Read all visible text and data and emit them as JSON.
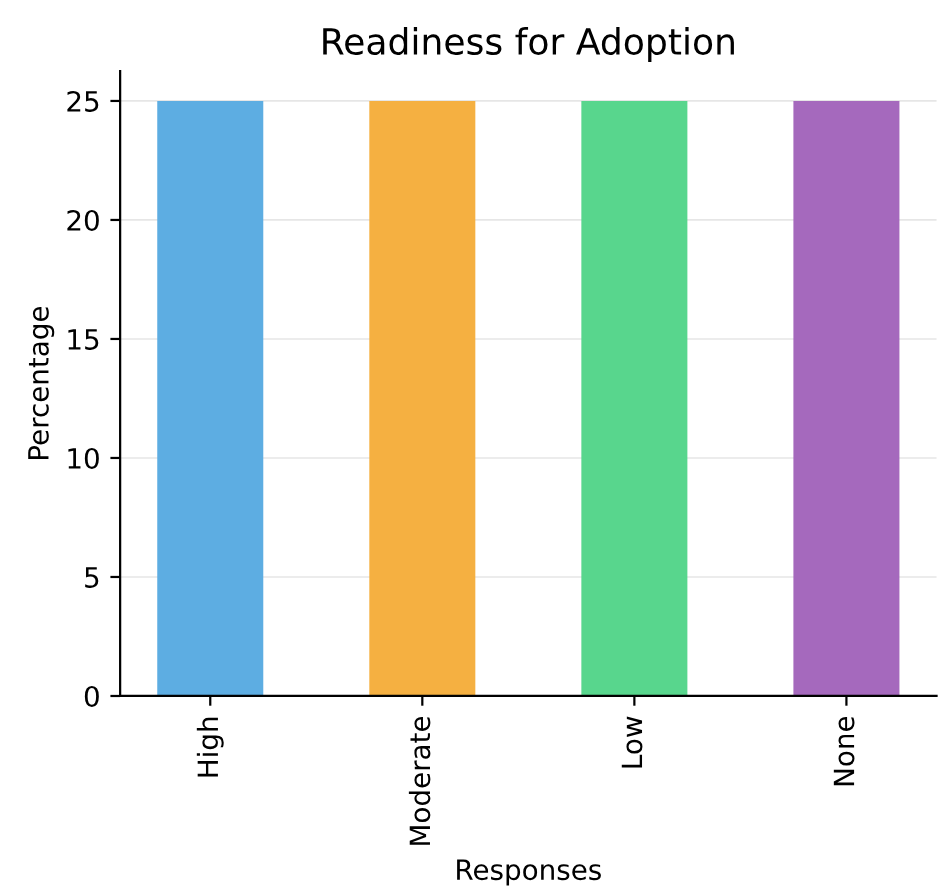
{
  "chart_data": {
    "type": "bar",
    "title": "Readiness for Adoption",
    "xlabel": "Responses",
    "ylabel": "Percentage",
    "categories": [
      "High",
      "Moderate",
      "Low",
      "None"
    ],
    "values": [
      25,
      25,
      25,
      25
    ],
    "colors": [
      "#5dade2",
      "#f5b041",
      "#58d68d",
      "#a569bd"
    ],
    "ylim": [
      0,
      26.25
    ],
    "yticks": [
      0,
      5,
      10,
      15,
      20,
      25
    ],
    "grid": "y"
  }
}
